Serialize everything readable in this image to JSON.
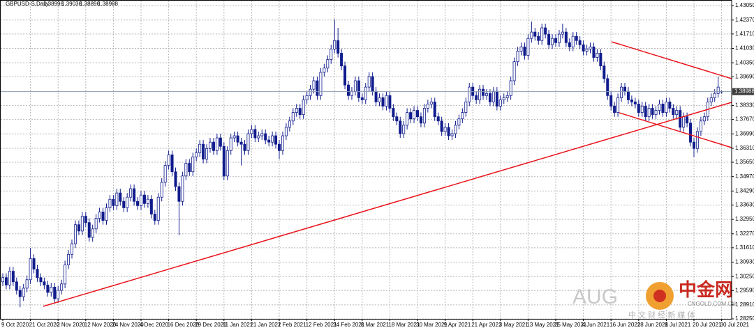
{
  "chart_data": {
    "type": "candlestick",
    "title": "GBPUSD-S,Daily",
    "up_color": "#ffffff",
    "down_color": "#101c8c",
    "outline_color": "#101c8c",
    "grid": true,
    "ylim": [
      1.2825,
      1.4325
    ],
    "yticks": [
      {
        "value": 1.4305,
        "label": "1.43050"
      },
      {
        "value": 1.4237,
        "label": "1.42370"
      },
      {
        "value": 1.4171,
        "label": "1.41710"
      },
      {
        "value": 1.4103,
        "label": "1.41030"
      },
      {
        "value": 1.4035,
        "label": "1.40350"
      },
      {
        "value": 1.3969,
        "label": "1.39690"
      },
      {
        "value": 1.3833,
        "label": "1.38330"
      },
      {
        "value": 1.3767,
        "label": "1.37670"
      },
      {
        "value": 1.3699,
        "label": "1.36990"
      },
      {
        "value": 1.3631,
        "label": "1.36310"
      },
      {
        "value": 1.3565,
        "label": "1.35650"
      },
      {
        "value": 1.3497,
        "label": "1.34970"
      },
      {
        "value": 1.3429,
        "label": "1.34290"
      },
      {
        "value": 1.3363,
        "label": "1.33630"
      },
      {
        "value": 1.3295,
        "label": "1.32950"
      },
      {
        "value": 1.3227,
        "label": "1.32270"
      },
      {
        "value": 1.3161,
        "label": "1.31610"
      },
      {
        "value": 1.3093,
        "label": "1.30930"
      },
      {
        "value": 1.3025,
        "label": "1.30250"
      },
      {
        "value": 1.2959,
        "label": "1.29590"
      },
      {
        "value": 1.2891,
        "label": "1.28910"
      },
      {
        "value": 1.2825,
        "label": "1.28250"
      }
    ],
    "bid": {
      "value": 1.38988,
      "label": "1.38988"
    },
    "categories": [
      "9 Oct 2020",
      null,
      null,
      null,
      null,
      null,
      null,
      null,
      "21 Oct 2020",
      null,
      null,
      null,
      null,
      null,
      null,
      null,
      "2 Nov 2020",
      null,
      null,
      null,
      null,
      null,
      null,
      null,
      "12 Nov 2020",
      null,
      null,
      null,
      null,
      null,
      null,
      null,
      "24 Nov 2020",
      null,
      null,
      null,
      null,
      null,
      null,
      null,
      "4 Dec 2020",
      null,
      null,
      null,
      null,
      null,
      null,
      null,
      "16 Dec 2020",
      null,
      null,
      null,
      null,
      null,
      null,
      null,
      "29 Dec 2020",
      null,
      null,
      null,
      null,
      null,
      null,
      null,
      "11 Jan 2021",
      null,
      null,
      null,
      null,
      null,
      null,
      null,
      "21 Jan 2021",
      null,
      null,
      null,
      null,
      null,
      null,
      null,
      "2 Feb 2021",
      null,
      null,
      null,
      null,
      null,
      null,
      null,
      "12 Feb 2021",
      null,
      null,
      null,
      null,
      null,
      null,
      null,
      "24 Feb 2021",
      null,
      null,
      null,
      null,
      null,
      null,
      null,
      "8 Mar 2021",
      null,
      null,
      null,
      null,
      null,
      null,
      null,
      "18 Mar 2021",
      null,
      null,
      null,
      null,
      null,
      null,
      null,
      "30 Mar 2021",
      null,
      null,
      null,
      null,
      null,
      null,
      null,
      "9 Apr 2021",
      null,
      null,
      null,
      null,
      null,
      null,
      null,
      "21 Apr 2021",
      null,
      null,
      null,
      null,
      null,
      null,
      null,
      "3 May 2021",
      null,
      null,
      null,
      null,
      null,
      null,
      null,
      "13 May 2021",
      null,
      null,
      null,
      null,
      null,
      null,
      null,
      "25 May 2021",
      null,
      null,
      null,
      null,
      null,
      null,
      null,
      "4 Jun 2021",
      null,
      null,
      null,
      null,
      null,
      null,
      null,
      "16 Jun 2021",
      null,
      null,
      null,
      null,
      null,
      null,
      null,
      "28 Jun 2021",
      null,
      null,
      null,
      null,
      null,
      null,
      null,
      "8 Jul 2021",
      null,
      null,
      null,
      null,
      null,
      null,
      null,
      "20 Jul 2021",
      null,
      null,
      null,
      null,
      null,
      null,
      null,
      "30 Jul 2021"
    ],
    "open": [
      1.3,
      1.302,
      1.2985,
      1.305,
      1.3,
      1.296,
      1.293,
      1.297,
      1.301,
      1.311,
      1.306,
      1.302,
      1.3,
      1.2985,
      1.295,
      1.2975,
      1.292,
      1.296,
      1.299,
      1.308,
      1.313,
      1.318,
      1.327,
      1.324,
      1.331,
      1.328,
      1.321,
      1.325,
      1.33,
      1.333,
      1.329,
      1.335,
      1.339,
      1.336,
      1.342,
      1.338,
      1.335,
      1.34,
      1.344,
      1.338,
      1.336,
      1.341,
      1.337,
      1.339,
      1.332,
      1.329,
      1.34,
      1.347,
      1.355,
      1.36,
      1.352,
      1.345,
      1.338,
      1.35,
      1.356,
      1.352,
      1.359,
      1.361,
      1.365,
      1.358,
      1.363,
      1.366,
      1.362,
      1.368,
      1.364,
      1.35,
      1.362,
      1.368,
      1.369,
      1.366,
      1.365,
      1.362,
      1.37,
      1.372,
      1.368,
      1.369,
      1.37,
      1.367,
      1.366,
      1.369,
      1.365,
      1.362,
      1.369,
      1.373,
      1.376,
      1.38,
      1.382,
      1.379,
      1.386,
      1.388,
      1.391,
      1.395,
      1.388,
      1.399,
      1.401,
      1.405,
      1.41,
      1.414,
      1.408,
      1.402,
      1.393,
      1.388,
      1.39,
      1.395,
      1.387,
      1.386,
      1.392,
      1.397,
      1.39,
      1.385,
      1.387,
      1.383,
      1.388,
      1.382,
      1.378,
      1.376,
      1.37,
      1.374,
      1.38,
      1.377,
      1.381,
      1.378,
      1.375,
      1.382,
      1.384,
      1.385,
      1.378,
      1.376,
      1.371,
      1.373,
      1.369,
      1.37,
      1.374,
      1.377,
      1.38,
      1.385,
      1.392,
      1.388,
      1.386,
      1.391,
      1.388,
      1.389,
      1.385,
      1.39,
      1.383,
      1.386,
      1.387,
      1.388,
      1.395,
      1.404,
      1.409,
      1.411,
      1.407,
      1.415,
      1.418,
      1.416,
      1.414,
      1.42,
      1.417,
      1.412,
      1.415,
      1.413,
      1.417,
      1.418,
      1.413,
      1.411,
      1.416,
      1.414,
      1.412,
      1.409,
      1.41,
      1.411,
      1.406,
      1.408,
      1.402,
      1.396,
      1.388,
      1.383,
      1.38,
      1.387,
      1.392,
      1.39,
      1.386,
      1.385,
      1.384,
      1.38,
      1.383,
      1.378,
      1.382,
      1.379,
      1.381,
      1.384,
      1.38,
      1.385,
      1.382,
      1.379,
      1.381,
      1.373,
      1.378,
      1.375,
      1.366,
      1.363,
      1.371,
      1.376,
      1.378,
      1.385,
      1.387,
      1.389,
      1.38996
    ],
    "high": [
      1.304,
      1.304,
      1.307,
      1.307,
      1.302,
      1.298,
      1.299,
      1.303,
      1.316,
      1.313,
      1.308,
      1.304,
      1.302,
      1.3005,
      1.2995,
      1.2995,
      1.298,
      1.301,
      1.31,
      1.315,
      1.32,
      1.329,
      1.329,
      1.333,
      1.333,
      1.33,
      1.327,
      1.332,
      1.335,
      1.335,
      1.337,
      1.341,
      1.341,
      1.344,
      1.344,
      1.34,
      1.342,
      1.346,
      1.346,
      1.34,
      1.343,
      1.343,
      1.341,
      1.341,
      1.334,
      1.342,
      1.349,
      1.357,
      1.362,
      1.362,
      1.354,
      1.347,
      1.352,
      1.358,
      1.358,
      1.361,
      1.363,
      1.367,
      1.367,
      1.365,
      1.368,
      1.368,
      1.37,
      1.37,
      1.366,
      1.364,
      1.37,
      1.371,
      1.371,
      1.368,
      1.367,
      1.372,
      1.374,
      1.374,
      1.371,
      1.372,
      1.372,
      1.369,
      1.371,
      1.371,
      1.367,
      1.371,
      1.375,
      1.378,
      1.382,
      1.384,
      1.384,
      1.388,
      1.39,
      1.393,
      1.397,
      1.397,
      1.401,
      1.403,
      1.407,
      1.412,
      1.424,
      1.42,
      1.41,
      1.404,
      1.395,
      1.392,
      1.397,
      1.397,
      1.389,
      1.394,
      1.399,
      1.399,
      1.392,
      1.389,
      1.389,
      1.39,
      1.39,
      1.384,
      1.38,
      1.378,
      1.376,
      1.382,
      1.382,
      1.383,
      1.383,
      1.38,
      1.384,
      1.386,
      1.387,
      1.387,
      1.38,
      1.378,
      1.375,
      1.375,
      1.372,
      1.376,
      1.379,
      1.382,
      1.387,
      1.394,
      1.394,
      1.39,
      1.393,
      1.393,
      1.391,
      1.391,
      1.392,
      1.392,
      1.388,
      1.389,
      1.39,
      1.397,
      1.406,
      1.411,
      1.413,
      1.413,
      1.417,
      1.423,
      1.42,
      1.418,
      1.422,
      1.422,
      1.419,
      1.417,
      1.417,
      1.419,
      1.422,
      1.42,
      1.415,
      1.418,
      1.418,
      1.416,
      1.414,
      1.412,
      1.413,
      1.413,
      1.41,
      1.41,
      1.404,
      1.398,
      1.39,
      1.385,
      1.389,
      1.394,
      1.394,
      1.392,
      1.388,
      1.387,
      1.386,
      1.385,
      1.385,
      1.384,
      1.384,
      1.383,
      1.386,
      1.386,
      1.387,
      1.387,
      1.384,
      1.383,
      1.383,
      1.38,
      1.38,
      1.377,
      1.368,
      1.373,
      1.378,
      1.38,
      1.387,
      1.389,
      1.391,
      1.397,
      1.39036
    ],
    "low": [
      1.298,
      1.2965,
      1.2965,
      1.298,
      1.294,
      1.288,
      1.291,
      1.295,
      1.299,
      1.304,
      1.3,
      1.298,
      1.2965,
      1.293,
      1.293,
      1.29,
      1.29,
      1.294,
      1.297,
      1.306,
      1.311,
      1.316,
      1.322,
      1.322,
      1.326,
      1.319,
      1.319,
      1.323,
      1.328,
      1.327,
      1.327,
      1.333,
      1.334,
      1.334,
      1.336,
      1.333,
      1.333,
      1.338,
      1.336,
      1.334,
      1.334,
      1.335,
      1.335,
      1.33,
      1.327,
      1.327,
      1.338,
      1.345,
      1.353,
      1.35,
      1.343,
      1.322,
      1.336,
      1.348,
      1.35,
      1.35,
      1.357,
      1.359,
      1.356,
      1.356,
      1.361,
      1.36,
      1.36,
      1.362,
      1.348,
      1.348,
      1.36,
      1.366,
      1.364,
      1.355,
      1.36,
      1.36,
      1.368,
      1.366,
      1.366,
      1.367,
      1.365,
      1.364,
      1.364,
      1.363,
      1.358,
      1.36,
      1.367,
      1.371,
      1.374,
      1.378,
      1.377,
      1.377,
      1.384,
      1.386,
      1.389,
      1.386,
      1.386,
      1.397,
      1.399,
      1.403,
      1.408,
      1.406,
      1.4,
      1.391,
      1.386,
      1.386,
      1.388,
      1.385,
      1.384,
      1.384,
      1.39,
      1.388,
      1.383,
      1.383,
      1.381,
      1.381,
      1.38,
      1.376,
      1.374,
      1.368,
      1.368,
      1.372,
      1.375,
      1.375,
      1.376,
      1.373,
      1.373,
      1.38,
      1.382,
      1.376,
      1.374,
      1.369,
      1.369,
      1.367,
      1.367,
      1.368,
      1.372,
      1.375,
      1.378,
      1.383,
      1.386,
      1.384,
      1.384,
      1.386,
      1.386,
      1.383,
      1.383,
      1.381,
      1.381,
      1.384,
      1.385,
      1.386,
      1.393,
      1.402,
      1.407,
      1.405,
      1.405,
      1.413,
      1.414,
      1.412,
      1.412,
      1.415,
      1.41,
      1.41,
      1.411,
      1.411,
      1.415,
      1.411,
      1.409,
      1.409,
      1.412,
      1.41,
      1.407,
      1.407,
      1.408,
      1.404,
      1.404,
      1.4,
      1.394,
      1.386,
      1.381,
      1.378,
      1.378,
      1.385,
      1.388,
      1.384,
      1.383,
      1.382,
      1.378,
      1.378,
      1.376,
      1.376,
      1.377,
      1.377,
      1.379,
      1.378,
      1.378,
      1.38,
      1.377,
      1.377,
      1.371,
      1.371,
      1.373,
      1.364,
      1.359,
      1.361,
      1.369,
      1.374,
      1.376,
      1.383,
      1.385,
      1.387,
      1.38896
    ],
    "close": [
      1.302,
      1.2985,
      1.305,
      1.3,
      1.296,
      1.293,
      1.297,
      1.301,
      1.311,
      1.306,
      1.302,
      1.3,
      1.2985,
      1.295,
      1.2975,
      1.292,
      1.296,
      1.299,
      1.308,
      1.313,
      1.318,
      1.327,
      1.324,
      1.331,
      1.328,
      1.321,
      1.325,
      1.33,
      1.333,
      1.329,
      1.335,
      1.339,
      1.336,
      1.342,
      1.338,
      1.335,
      1.34,
      1.344,
      1.338,
      1.336,
      1.341,
      1.337,
      1.339,
      1.332,
      1.329,
      1.34,
      1.347,
      1.355,
      1.36,
      1.352,
      1.345,
      1.338,
      1.35,
      1.356,
      1.352,
      1.359,
      1.361,
      1.365,
      1.358,
      1.363,
      1.366,
      1.362,
      1.368,
      1.364,
      1.35,
      1.362,
      1.368,
      1.369,
      1.366,
      1.365,
      1.362,
      1.37,
      1.372,
      1.368,
      1.369,
      1.37,
      1.367,
      1.366,
      1.369,
      1.365,
      1.362,
      1.369,
      1.373,
      1.376,
      1.38,
      1.382,
      1.379,
      1.386,
      1.388,
      1.391,
      1.395,
      1.388,
      1.399,
      1.401,
      1.405,
      1.41,
      1.414,
      1.408,
      1.402,
      1.393,
      1.388,
      1.39,
      1.395,
      1.387,
      1.386,
      1.392,
      1.397,
      1.39,
      1.385,
      1.387,
      1.383,
      1.388,
      1.382,
      1.378,
      1.376,
      1.37,
      1.374,
      1.38,
      1.377,
      1.381,
      1.378,
      1.375,
      1.382,
      1.384,
      1.385,
      1.378,
      1.376,
      1.371,
      1.373,
      1.369,
      1.37,
      1.374,
      1.377,
      1.38,
      1.385,
      1.392,
      1.388,
      1.386,
      1.391,
      1.388,
      1.389,
      1.385,
      1.39,
      1.383,
      1.386,
      1.387,
      1.388,
      1.395,
      1.404,
      1.409,
      1.411,
      1.407,
      1.415,
      1.418,
      1.416,
      1.414,
      1.42,
      1.417,
      1.412,
      1.415,
      1.413,
      1.417,
      1.418,
      1.413,
      1.411,
      1.416,
      1.414,
      1.412,
      1.409,
      1.41,
      1.411,
      1.406,
      1.408,
      1.402,
      1.396,
      1.388,
      1.383,
      1.38,
      1.387,
      1.392,
      1.39,
      1.386,
      1.385,
      1.384,
      1.38,
      1.383,
      1.378,
      1.382,
      1.379,
      1.381,
      1.384,
      1.38,
      1.385,
      1.382,
      1.379,
      1.381,
      1.373,
      1.378,
      1.375,
      1.366,
      1.363,
      1.371,
      1.376,
      1.378,
      1.385,
      1.387,
      1.389,
      1.392,
      1.38988
    ]
  },
  "watermark": {
    "brand_left": "AUG",
    "brand": "中金网",
    "site": "CNGOLD.COM.CN",
    "slogan": "中 文 财 经 新 媒 体"
  }
}
